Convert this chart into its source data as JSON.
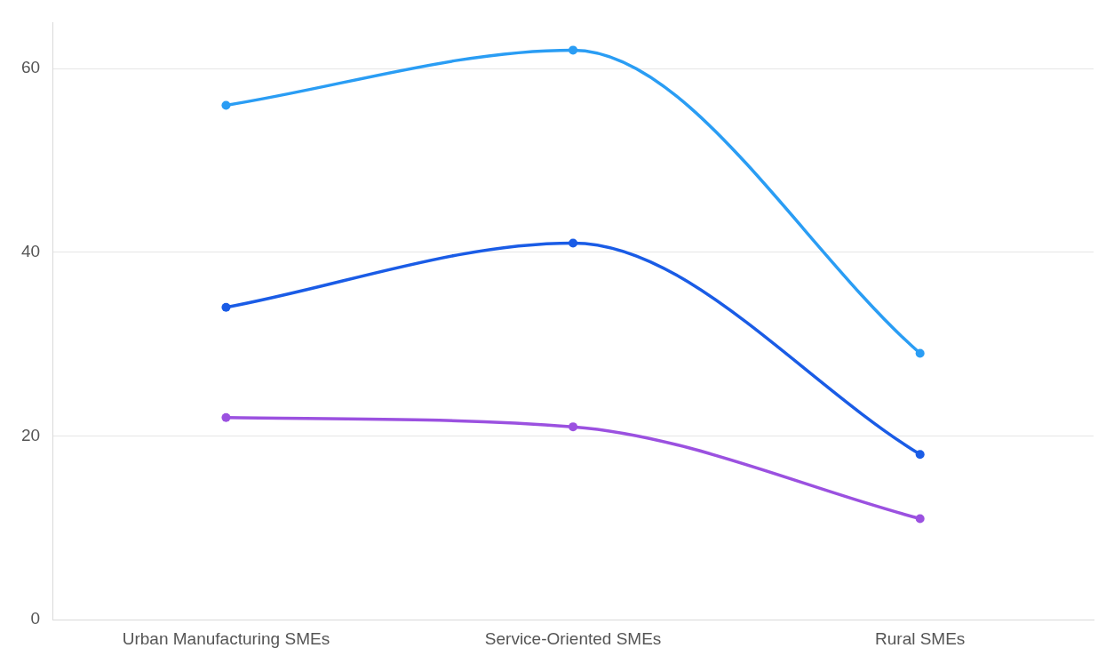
{
  "chart_data": {
    "type": "line",
    "categories": [
      "Urban Manufacturing SMEs",
      "Service-Oriented SMEs",
      "Rural SMEs"
    ],
    "series": [
      {
        "color": "#2a9df4",
        "values": [
          56,
          62,
          29
        ]
      },
      {
        "color": "#1a5ce6",
        "values": [
          34,
          41,
          18
        ]
      },
      {
        "color": "#9b51e0",
        "values": [
          22,
          21,
          11
        ]
      }
    ],
    "ylim": [
      0,
      65
    ],
    "yticks": [
      0,
      20,
      40,
      60
    ],
    "grid": "y",
    "legend": false,
    "marker": "circle"
  }
}
